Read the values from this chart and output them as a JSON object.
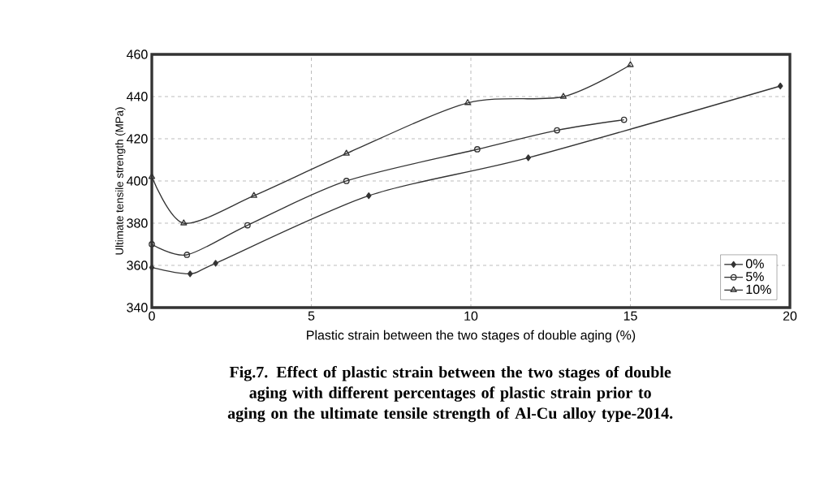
{
  "chart_data": {
    "type": "line",
    "title": "Fig.7. Effect of plastic strain between the two stages of double  aging with  different  percentages  of  plastic strain  prior to aging  on the ultimate tensile strength of Al-Cu alloy type-2014.",
    "xlabel": "Plastic strain between the two stages of double aging (%)",
    "ylabel": "Ultimate tensile strength (MPa)",
    "xlim": [
      0,
      20
    ],
    "xticks": [
      0,
      5,
      10,
      15,
      20
    ],
    "ylim": [
      340,
      460
    ],
    "yticks": [
      340,
      360,
      380,
      400,
      420,
      440,
      460
    ],
    "grid": true,
    "legend": "bottom right",
    "series": [
      {
        "name": "0%",
        "color": "#333333",
        "marker": "diamond",
        "x": [
          0,
          1.2,
          2.0,
          6.8,
          11.8,
          19.7
        ],
        "values": [
          359,
          356,
          361,
          393,
          411,
          445
        ]
      },
      {
        "name": "5%",
        "color": "#333333",
        "marker": "circle",
        "x": [
          0,
          1.1,
          3.0,
          6.1,
          10.2,
          12.7,
          14.8
        ],
        "values": [
          370,
          365,
          379,
          400,
          415,
          424,
          429
        ]
      },
      {
        "name": "10%",
        "color": "#333333",
        "marker": "triangle",
        "x": [
          0,
          1.0,
          3.2,
          6.1,
          9.9,
          12.9,
          15.0
        ],
        "values": [
          402,
          380,
          393,
          413,
          437,
          440,
          455
        ]
      }
    ]
  }
}
